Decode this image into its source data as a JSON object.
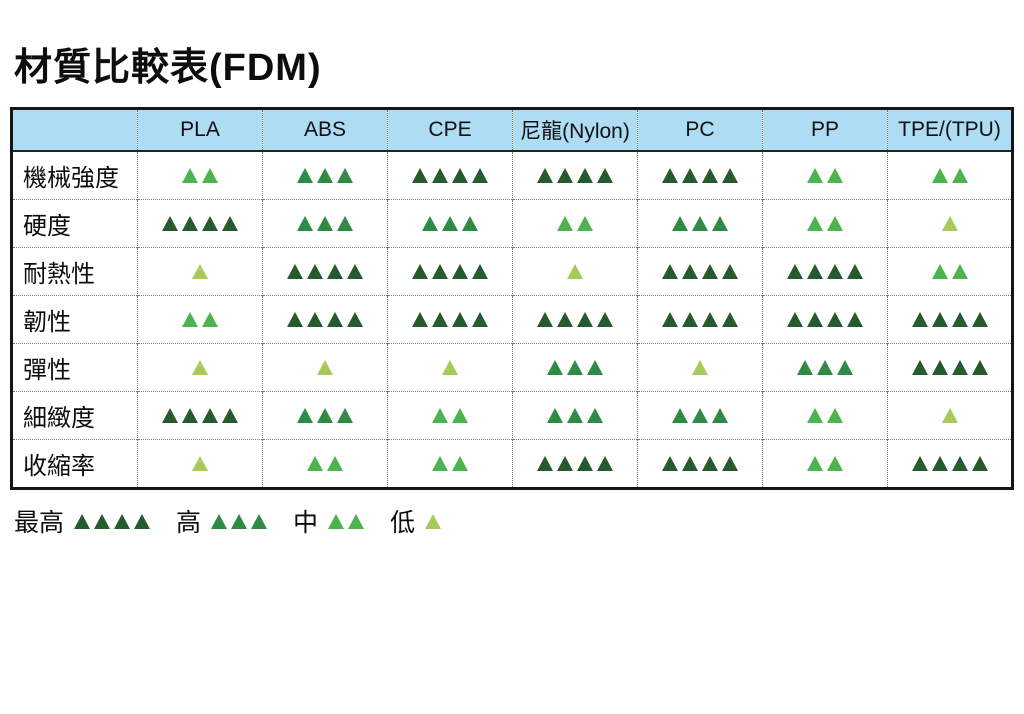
{
  "title": "材質比較表(FDM)",
  "colors": {
    "level1": "#a6cb5a",
    "level2": "#4db350",
    "level3": "#2e8b46",
    "level4": "#26592e",
    "header_bg": "#aedcf2"
  },
  "chart_data": {
    "type": "table",
    "title": "材質比較表(FDM)",
    "columns": [
      "PLA",
      "ABS",
      "CPE",
      "尼龍(Nylon)",
      "PC",
      "PP",
      "TPE/(TPU)"
    ],
    "scale_labels": {
      "4": "最高",
      "3": "高",
      "2": "中",
      "1": "低"
    },
    "rows": [
      {
        "label": "機械強度",
        "values": [
          2,
          3,
          4,
          4,
          4,
          2,
          2
        ]
      },
      {
        "label": "硬度",
        "values": [
          4,
          3,
          3,
          2,
          3,
          2,
          1
        ]
      },
      {
        "label": "耐熱性",
        "values": [
          1,
          4,
          4,
          1,
          4,
          4,
          2
        ]
      },
      {
        "label": "韌性",
        "values": [
          2,
          4,
          4,
          4,
          4,
          4,
          4
        ]
      },
      {
        "label": "彈性",
        "values": [
          1,
          1,
          1,
          3,
          1,
          3,
          4
        ]
      },
      {
        "label": "細緻度",
        "values": [
          4,
          3,
          2,
          3,
          3,
          2,
          1
        ]
      },
      {
        "label": "收縮率",
        "values": [
          1,
          2,
          2,
          4,
          4,
          2,
          4
        ]
      }
    ]
  },
  "legend": [
    {
      "label": "最高",
      "count": 4
    },
    {
      "label": "高",
      "count": 3
    },
    {
      "label": "中",
      "count": 2
    },
    {
      "label": "低",
      "count": 1
    }
  ]
}
